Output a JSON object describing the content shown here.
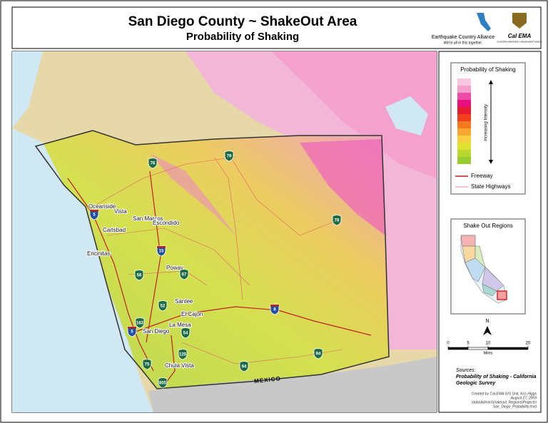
{
  "header": {
    "title": "San Diego County ~ ShakeOut Area",
    "subtitle": "Probability of Shaking",
    "eca_name": "Earthquake Country Alliance",
    "eca_tagline": "We're all in this together.",
    "calema_name": "Cal EMA",
    "calema_sub": "CALIFORNIA EMERGENCY MANAGEMENT AGENCY"
  },
  "map": {
    "cities": [
      "Oceanside",
      "Vista",
      "San Marcos",
      "Carlsbad",
      "Escondido",
      "Encinitas",
      "Poway",
      "Santee",
      "El Cajon",
      "La Mesa",
      "San Diego",
      "Chula Vista"
    ],
    "highways": [
      "76",
      "79",
      "78",
      "5",
      "15",
      "56",
      "67",
      "52",
      "163",
      "8",
      "54",
      "5",
      "125",
      "805",
      "75",
      "94",
      "94"
    ],
    "country": "MEXICO"
  },
  "legend": {
    "title": "Probability of Shaking",
    "arrow_label": "Increasing Intensity",
    "items": [
      "Freeway",
      "State Highways"
    ]
  },
  "inset": {
    "title": "Shake Out Regions"
  },
  "scale": {
    "ticks": [
      0,
      5,
      10,
      20
    ],
    "unit": "Miles",
    "north": "N"
  },
  "sources": {
    "label": "Sources:",
    "lines": [
      "Probability of Shaking - California",
      "Geologic Survey"
    ]
  },
  "credits": [
    "Created by Cal-EMA GIS Unit, Kris Higgs",
    "August 27, 2009",
    "\\data\\Admin\\Shakeout_Regions\\Projects\\",
    "San_Diego_Probability.mxd"
  ]
}
